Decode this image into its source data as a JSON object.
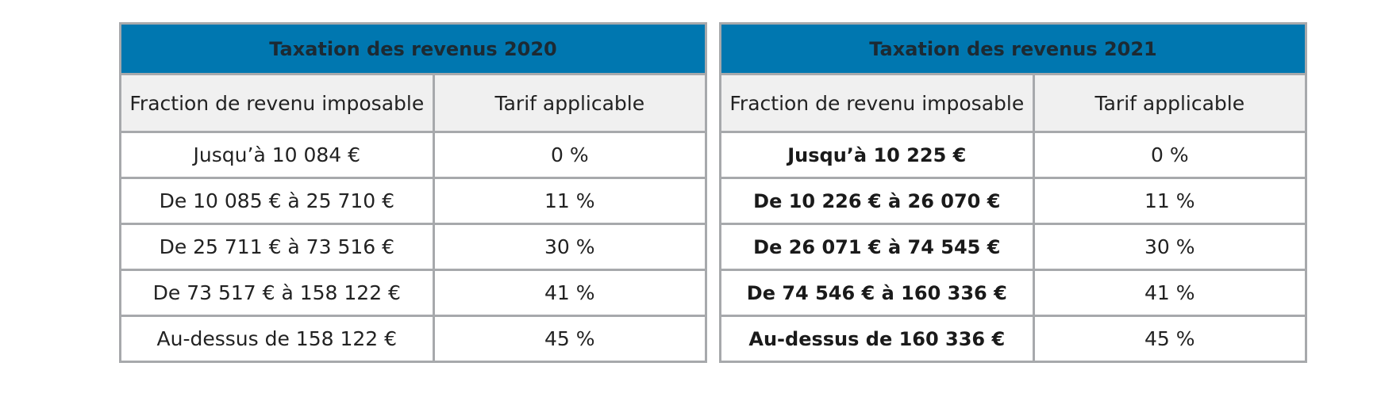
{
  "tables": [
    {
      "title": "Taxation des revenus 2020",
      "headers": [
        "Fraction de revenu imposable",
        "Tarif applicable"
      ],
      "rows": [
        {
          "range": "Jusqu’à 10 084 €",
          "rate": "0 %"
        },
        {
          "range": "De 10 085 € à 25 710 €",
          "rate": "11 %"
        },
        {
          "range": "De 25 711 € à 73 516 €",
          "rate": "30 %"
        },
        {
          "range": "De 73 517 € à 158 122 €",
          "rate": "41 %"
        },
        {
          "range": "Au-dessus de 158 122 €",
          "rate": "45 %"
        }
      ]
    },
    {
      "title": "Taxation des revenus 2021",
      "headers": [
        "Fraction de revenu imposable",
        "Tarif applicable"
      ],
      "rows": [
        {
          "range": "Jusqu’à 10 225 €",
          "rate": "0 %"
        },
        {
          "range": "De 10 226 € à 26 070 €",
          "rate": "11 %"
        },
        {
          "range": "De 26 071 € à 74 545 €",
          "rate": "30 %"
        },
        {
          "range": "De 74 546 € à 160 336 €",
          "rate": "41 %"
        },
        {
          "range": "Au-dessus de 160 336 €",
          "rate": "45 %"
        }
      ]
    }
  ],
  "colors": {
    "title_background": "#0077b0",
    "header_background": "#f0f0f0",
    "border": "#a7a9ac"
  }
}
